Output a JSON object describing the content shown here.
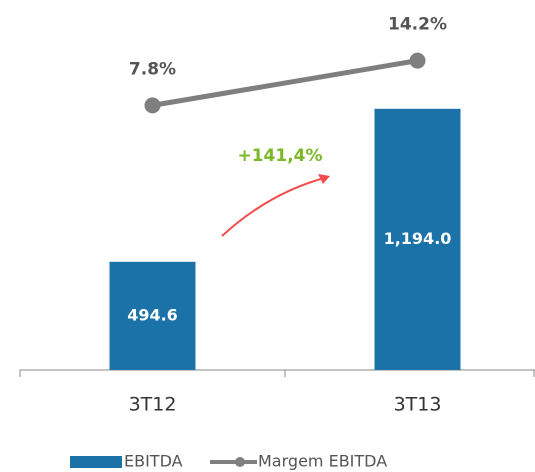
{
  "chart_data": {
    "type": "bar_line",
    "categories": [
      "3T12",
      "3T13"
    ],
    "series": [
      {
        "name": "EBITDA",
        "type": "bar",
        "color": "#1a72a8",
        "values": [
          494.6,
          1194.0
        ],
        "value_labels": [
          "494.6",
          "1,194.0"
        ]
      },
      {
        "name": "Margem EBITDA",
        "type": "line",
        "axis": "y2",
        "color": "#7f7f7f",
        "values": [
          7.8,
          14.2
        ],
        "value_labels": [
          "7.8%",
          "14.2%"
        ]
      }
    ],
    "annotation": "+141,4%",
    "ylim": [
      0,
      1600
    ],
    "y2lim": [
      -30,
      20
    ],
    "legend": "bottom"
  }
}
